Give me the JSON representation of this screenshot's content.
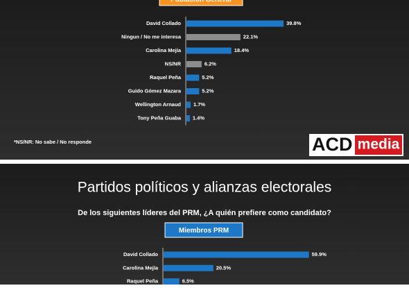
{
  "chart_data": [
    {
      "type": "bar",
      "orientation": "horizontal",
      "group_label": "Población General",
      "categories": [
        "David Collado",
        "Ningun / No me interesa",
        "Carolina Mejía",
        "NS/NR",
        "Raquel Peña",
        "Guido Gómez Mazara",
        "Wellington Arnaud",
        "Tony Peña Guaba"
      ],
      "values": [
        39.8,
        22.1,
        18.4,
        6.2,
        5.2,
        5.2,
        1.7,
        1.4
      ],
      "value_labels": [
        "39.8%",
        "22.1%",
        "18.4%",
        "6.2%",
        "5.2%",
        "5.2%",
        "1.7%",
        "1.4%"
      ],
      "colors": [
        "#1e78c8",
        "#8c8c8c",
        "#1e78c8",
        "#8c8c8c",
        "#1e78c8",
        "#1e78c8",
        "#1e78c8",
        "#1e78c8"
      ],
      "label_color": "#f7931e",
      "note": "*NS/NR: No sabe / No responde"
    },
    {
      "type": "bar",
      "orientation": "horizontal",
      "title": "Partidos políticos y alianzas electorales",
      "subtitle": "De los siguientes líderes del PRM, ¿A quién prefiere como candidato?",
      "group_label": "Miembros PRM",
      "categories": [
        "David Collado",
        "Carolina Mejía",
        "Raquel Peña"
      ],
      "values": [
        59.9,
        20.5,
        6.5
      ],
      "value_labels": [
        "59.9%",
        "20.5%",
        "6.5%"
      ],
      "colors": [
        "#1e78c8",
        "#1e78c8",
        "#1e78c8"
      ],
      "label_color": "#1e78c8"
    }
  ],
  "logo": {
    "brand": "ACD",
    "suffix": "media"
  }
}
